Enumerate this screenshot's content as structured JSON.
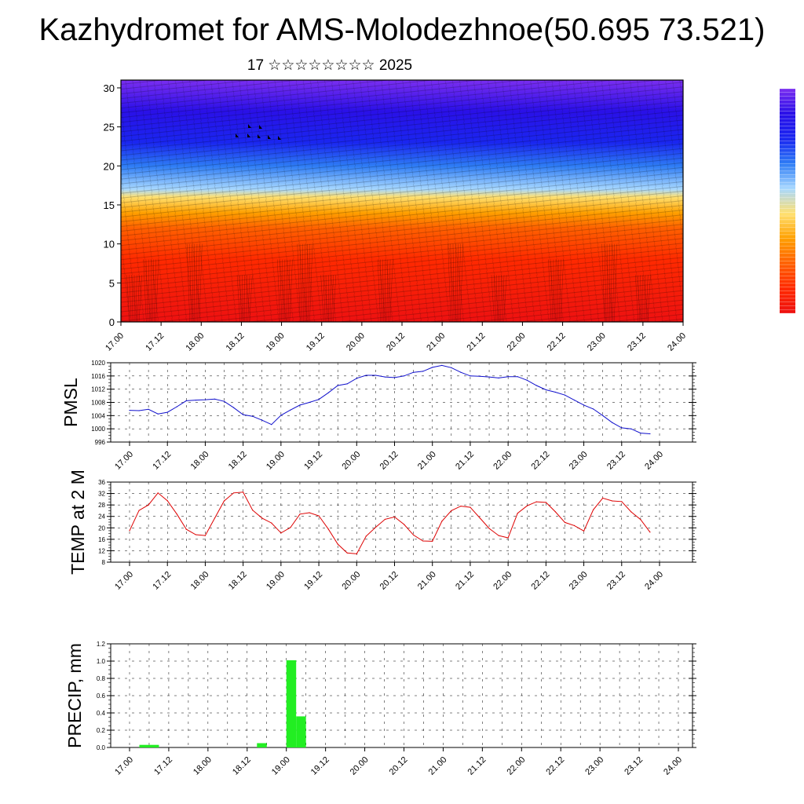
{
  "title": "Kazhydromet for AMS-Molodezhnoe(50.695 73.521)",
  "subtitle": "17 ☆☆☆☆☆☆☆☆ 2025",
  "colors": {
    "pmsl_line": "#1010cc",
    "temp_line": "#dd0000",
    "precip_bar": "#22ee22"
  },
  "chart_data": [
    {
      "type": "heatmap",
      "id": "cross-section",
      "title": "",
      "xlabel": "",
      "ylabel": "",
      "x_ticks": [
        "17.00",
        "17.12",
        "18.00",
        "18.12",
        "19.00",
        "19.12",
        "20.00",
        "20.12",
        "21.00",
        "21.12",
        "22.00",
        "22.12",
        "23.00",
        "23.12",
        "24.00"
      ],
      "y_ticks": [
        0,
        5,
        10,
        15,
        20,
        25,
        30
      ],
      "ylim": [
        0,
        31
      ],
      "colorbar": "vertical, right of plot, red (warm, bottom) to violet (cold, top)",
      "layers": [
        {
          "height": 0,
          "color": "#ee1111"
        },
        {
          "height": 8,
          "color": "#ff2a00"
        },
        {
          "height": 12,
          "color": "#ff6000"
        },
        {
          "height": 14,
          "color": "#ffa000"
        },
        {
          "height": 16,
          "color": "#ffe070"
        },
        {
          "height": 17,
          "color": "#a8d8ff"
        },
        {
          "height": 20,
          "color": "#2e7cf5"
        },
        {
          "height": 23,
          "color": "#1a26f0"
        },
        {
          "height": 27,
          "color": "#2a10e8"
        },
        {
          "height": 31,
          "color": "#7a2ef0"
        }
      ]
    },
    {
      "type": "line",
      "id": "pmsl",
      "title": "",
      "xlabel": "",
      "ylabel": "PMSL",
      "ylim": [
        996,
        1020
      ],
      "y_ticks": [
        996,
        1000,
        1004,
        1008,
        1012,
        1016,
        1020
      ],
      "x_ticks": [
        "17.00",
        "17.12",
        "18.00",
        "18.12",
        "19.00",
        "19.12",
        "20.00",
        "20.12",
        "21.00",
        "21.12",
        "22.00",
        "22.12",
        "23.00",
        "23.12",
        "24.00"
      ],
      "x_hours": [
        0,
        3,
        6,
        9,
        12,
        15,
        18,
        21,
        24,
        27,
        30,
        33,
        36,
        39,
        42,
        45,
        48,
        51,
        54,
        57,
        60,
        63,
        66,
        69,
        72,
        75,
        78,
        81,
        84,
        87,
        90,
        93,
        96,
        99,
        102,
        105,
        108,
        111,
        114,
        117,
        120,
        123,
        126,
        129,
        132,
        135,
        138,
        141,
        144,
        147,
        150,
        153,
        156,
        159,
        162,
        165
      ],
      "series": [
        {
          "values": [
            1005.6,
            1005.5,
            1005.9,
            1004.5,
            1005.0,
            1006.7,
            1008.5,
            1008.7,
            1008.8,
            1009.0,
            1008.3,
            1006.4,
            1004.3,
            1003.8,
            1002.6,
            1001.3,
            1004.1,
            1005.7,
            1007.2,
            1008.0,
            1008.9,
            1010.9,
            1013.1,
            1013.6,
            1015.3,
            1016.2,
            1016.2,
            1015.7,
            1015.5,
            1016.0,
            1017.1,
            1017.4,
            1018.6,
            1019.2,
            1018.5,
            1017.1,
            1016.0,
            1015.9,
            1015.7,
            1015.4,
            1015.8,
            1015.8,
            1014.7,
            1013.1,
            1011.8,
            1011.1,
            1010.2,
            1008.7,
            1007.2,
            1006.0,
            1004.0,
            1001.9,
            1000.3,
            1000.0,
            998.7,
            998.5
          ]
        }
      ]
    },
    {
      "type": "line",
      "id": "temp",
      "title": "",
      "xlabel": "",
      "ylabel": "TEMP at 2 M",
      "ylim": [
        8,
        36
      ],
      "y_ticks": [
        8,
        12,
        16,
        20,
        24,
        28,
        32,
        36
      ],
      "x_ticks": [
        "17.00",
        "17.12",
        "18.00",
        "18.12",
        "19.00",
        "19.12",
        "20.00",
        "20.12",
        "21.00",
        "21.12",
        "22.00",
        "22.12",
        "23.00",
        "23.12",
        "24.00"
      ],
      "x_hours": [
        0,
        3,
        6,
        9,
        12,
        15,
        18,
        21,
        24,
        27,
        30,
        33,
        36,
        39,
        42,
        45,
        48,
        51,
        54,
        57,
        60,
        63,
        66,
        69,
        72,
        75,
        78,
        81,
        84,
        87,
        90,
        93,
        96,
        99,
        102,
        105,
        108,
        111,
        114,
        117,
        120,
        123,
        126,
        129,
        132,
        135,
        138,
        141,
        144,
        147,
        150,
        153,
        156,
        159,
        162,
        165
      ],
      "series": [
        {
          "values": [
            19.0,
            26.1,
            28.0,
            32.2,
            29.5,
            24.8,
            19.5,
            17.6,
            17.3,
            23.4,
            29.4,
            32.2,
            32.5,
            26.2,
            23.4,
            21.7,
            18.2,
            20.1,
            24.8,
            25.3,
            24.2,
            19.6,
            14.3,
            11.2,
            10.9,
            17.1,
            20.2,
            23.0,
            23.8,
            21.2,
            17.5,
            15.4,
            15.3,
            22.3,
            26.0,
            27.6,
            27.2,
            23.5,
            19.8,
            17.3,
            16.5,
            25.1,
            27.7,
            29.1,
            28.9,
            25.6,
            21.9,
            20.8,
            18.9,
            26.3,
            30.4,
            29.4,
            29.2,
            25.6,
            22.9,
            18.5
          ]
        }
      ]
    },
    {
      "type": "bar",
      "id": "precip",
      "title": "",
      "xlabel": "",
      "ylabel": "PRECIP, mm",
      "ylim": [
        0,
        1.2
      ],
      "y_ticks": [
        "0.0",
        "0.2",
        "0.4",
        "0.6",
        "0.8",
        "1.0",
        "1.2"
      ],
      "x_ticks": [
        "17.00",
        "17.12",
        "18.00",
        "18.12",
        "19.00",
        "19.12",
        "20.00",
        "20.12",
        "21.00",
        "21.12",
        "22.00",
        "22.12",
        "23.00",
        "23.12",
        "24.00"
      ],
      "bars": [
        {
          "start_hour": 3,
          "end_hour": 9,
          "value": 0.03
        },
        {
          "start_hour": 39,
          "end_hour": 42,
          "value": 0.05
        },
        {
          "start_hour": 48,
          "end_hour": 51,
          "value": 1.01
        },
        {
          "start_hour": 51,
          "end_hour": 54,
          "value": 0.36
        }
      ]
    }
  ]
}
